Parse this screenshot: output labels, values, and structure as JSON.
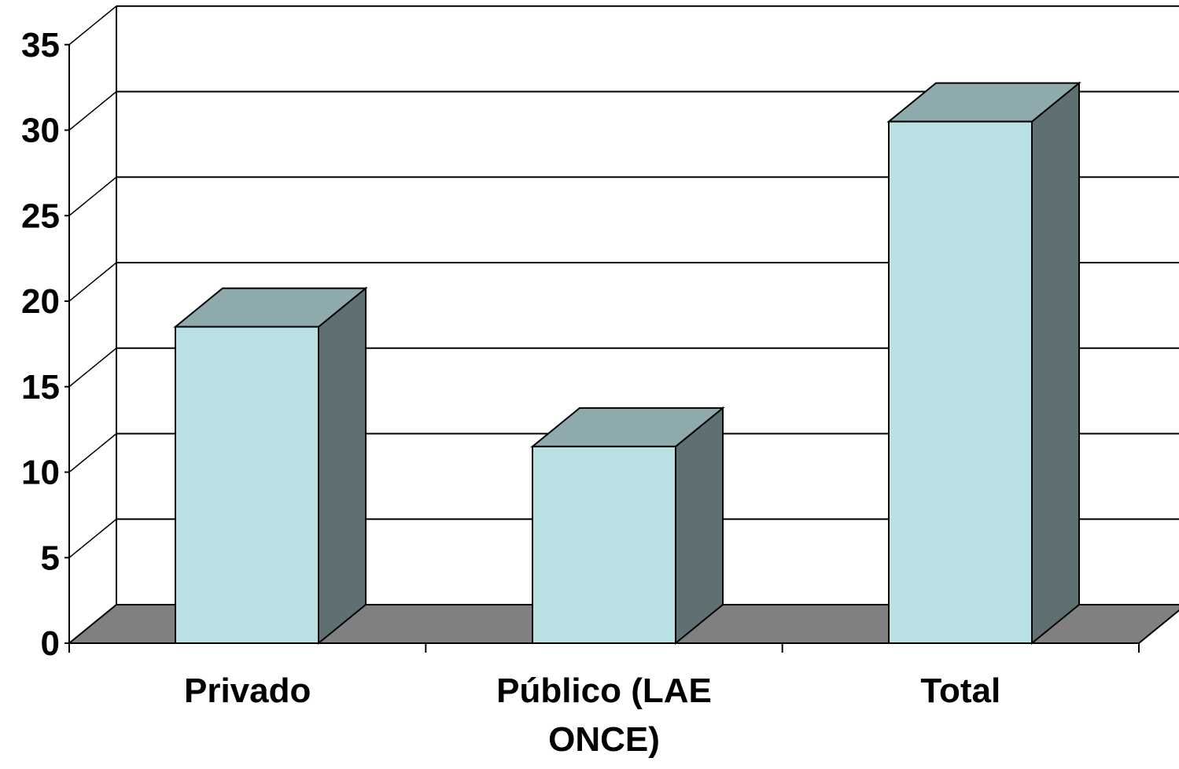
{
  "chart_data": {
    "type": "bar",
    "style": "3d-column",
    "categories": [
      "Privado",
      "Público (LAE ONCE)",
      "Total"
    ],
    "category_label_lines": [
      [
        "Privado"
      ],
      [
        "Público (LAE",
        "ONCE)"
      ],
      [
        "Total"
      ]
    ],
    "values": [
      18.5,
      11.5,
      30.5
    ],
    "ylim": [
      0,
      35
    ],
    "yticks": [
      0,
      5,
      10,
      15,
      20,
      25,
      30,
      35
    ],
    "title": "",
    "xlabel": "",
    "ylabel": "",
    "grid": true,
    "legend": "none",
    "colors": {
      "bar_front": "#b9e0e2",
      "bar_top": "#8faaac",
      "bar_side": "#5e7072",
      "floor": "#808080",
      "gridline": "#000000",
      "text": "#000000"
    }
  }
}
